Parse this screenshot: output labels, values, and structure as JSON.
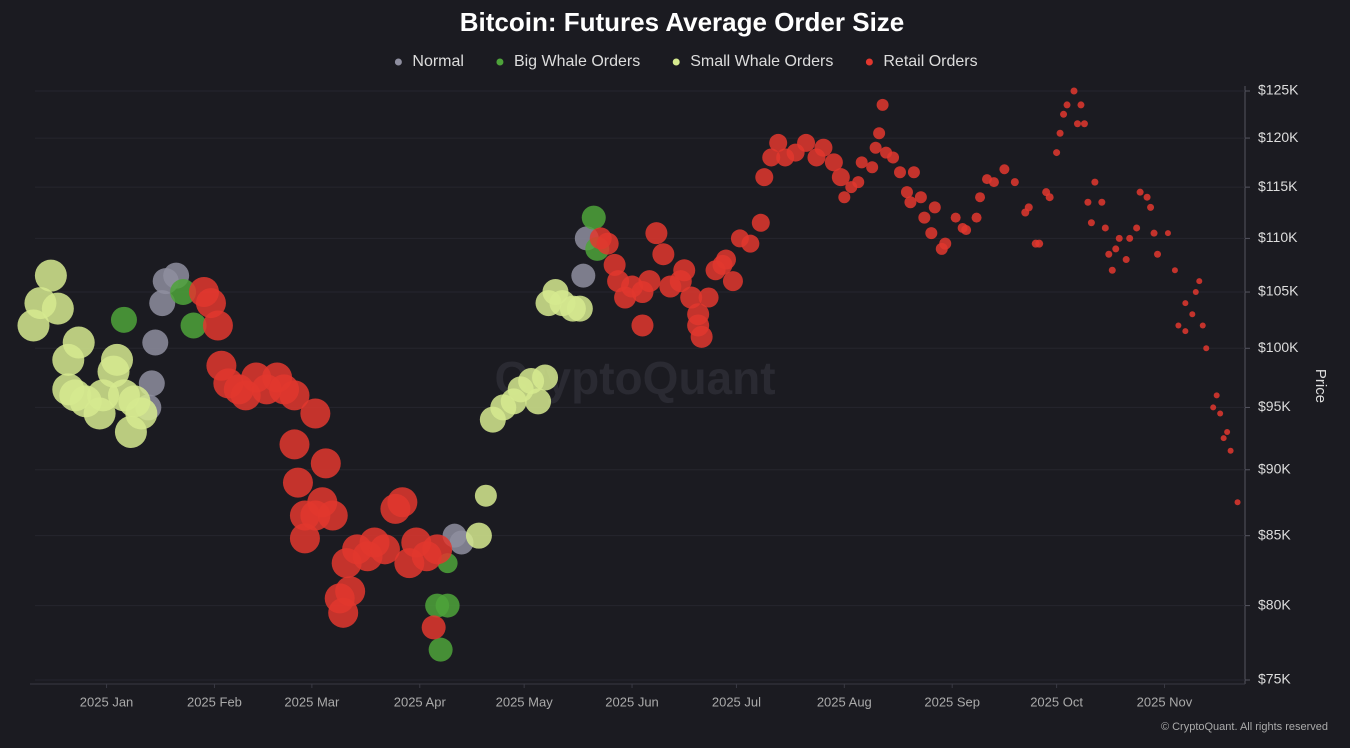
{
  "chart_data": {
    "type": "scatter",
    "title": "Bitcoin: Futures Average Order Size",
    "y_label": "Price",
    "watermark": "CryptoQuant",
    "footer": "© CryptoQuant. All rights reserved",
    "y_scale": "log",
    "grid": true,
    "legend": "top",
    "xlim": [
      "2024-12-10",
      "2025-11-25"
    ],
    "xticks": [
      {
        "value": "2025-01-01",
        "label": "2025 Jan"
      },
      {
        "value": "2025-02-01",
        "label": "2025 Feb"
      },
      {
        "value": "2025-03-01",
        "label": "2025 Mar"
      },
      {
        "value": "2025-04-01",
        "label": "2025 Apr"
      },
      {
        "value": "2025-05-01",
        "label": "2025 May"
      },
      {
        "value": "2025-06-01",
        "label": "2025 Jun"
      },
      {
        "value": "2025-07-01",
        "label": "2025 Jul"
      },
      {
        "value": "2025-08-01",
        "label": "2025 Aug"
      },
      {
        "value": "2025-09-01",
        "label": "2025 Sep"
      },
      {
        "value": "2025-10-01",
        "label": "2025 Oct"
      },
      {
        "value": "2025-11-01",
        "label": "2025 Nov"
      }
    ],
    "ylim": [
      75000,
      125000
    ],
    "yticks": [
      {
        "value": 75000,
        "label": "$75K"
      },
      {
        "value": 80000,
        "label": "$80K"
      },
      {
        "value": 85000,
        "label": "$85K"
      },
      {
        "value": 90000,
        "label": "$90K"
      },
      {
        "value": 95000,
        "label": "$95K"
      },
      {
        "value": 100000,
        "label": "$100K"
      },
      {
        "value": 105000,
        "label": "$105K"
      },
      {
        "value": 110000,
        "label": "$110K"
      },
      {
        "value": 115000,
        "label": "$115K"
      },
      {
        "value": 120000,
        "label": "$120K"
      },
      {
        "value": 125000,
        "label": "$125K"
      }
    ],
    "series": [
      {
        "name": "Normal",
        "color": "#8e8e9f",
        "x": [
          "2025-01-13",
          "2025-01-14",
          "2025-01-15",
          "2025-01-17",
          "2025-01-18",
          "2025-01-21",
          "2025-04-11",
          "2025-04-13",
          "2025-05-18",
          "2025-05-19"
        ],
        "values": [
          95000,
          97000,
          100500,
          104000,
          106000,
          106500,
          85000,
          84500,
          106500,
          110000
        ],
        "sizes": [
          13,
          13,
          13,
          13,
          13,
          13,
          12,
          12,
          12,
          12
        ]
      },
      {
        "name": "Big Whale Orders",
        "color": "#4ea33a",
        "x": [
          "2025-01-06",
          "2025-01-23",
          "2025-01-26",
          "2025-04-06",
          "2025-04-09",
          "2025-04-07",
          "2025-04-09",
          "2025-05-21",
          "2025-05-22"
        ],
        "values": [
          102500,
          105000,
          102000,
          80000,
          80000,
          77000,
          83000,
          112000,
          109000
        ],
        "sizes": [
          13,
          13,
          13,
          12,
          12,
          12,
          10,
          12,
          12
        ]
      },
      {
        "name": "Small Whale Orders",
        "color": "#d6ea8f",
        "x": [
          "2024-12-11",
          "2024-12-13",
          "2024-12-16",
          "2024-12-18",
          "2024-12-21",
          "2024-12-24",
          "2024-12-21",
          "2024-12-23",
          "2024-12-26",
          "2024-12-30",
          "2024-12-31",
          "2025-01-03",
          "2025-01-04",
          "2025-01-06",
          "2025-01-08",
          "2025-01-09",
          "2025-01-11",
          "2025-04-18",
          "2025-04-20",
          "2025-04-22",
          "2025-04-25",
          "2025-04-28",
          "2025-04-30",
          "2025-05-03",
          "2025-05-05",
          "2025-05-07",
          "2025-05-08",
          "2025-05-10",
          "2025-05-12",
          "2025-05-15",
          "2025-05-17"
        ],
        "values": [
          102000,
          104000,
          106500,
          103500,
          99000,
          100500,
          96500,
          96000,
          95500,
          94500,
          96000,
          98000,
          99000,
          96000,
          93000,
          95500,
          94500,
          85000,
          88000,
          94000,
          95000,
          95500,
          96500,
          97200,
          95500,
          97500,
          104000,
          105000,
          104000,
          103500,
          103500
        ],
        "sizes": [
          16,
          16,
          16,
          16,
          16,
          16,
          16,
          16,
          16,
          16,
          16,
          16,
          16,
          16,
          16,
          16,
          16,
          13,
          11,
          13,
          13,
          13,
          13,
          13,
          13,
          13,
          13,
          13,
          13,
          13,
          13
        ]
      },
      {
        "name": "Retail Orders",
        "color": "#e2372e",
        "x": [
          "2025-01-29",
          "2025-01-31",
          "2025-02-02",
          "2025-02-03",
          "2025-02-05",
          "2025-02-08",
          "2025-02-10",
          "2025-02-13",
          "2025-02-16",
          "2025-02-19",
          "2025-02-21",
          "2025-02-24",
          "2025-02-24",
          "2025-03-02",
          "2025-03-05",
          "2025-02-25",
          "2025-02-27",
          "2025-02-27",
          "2025-03-02",
          "2025-03-04",
          "2025-03-07",
          "2025-03-09",
          "2025-03-10",
          "2025-03-12",
          "2025-03-11",
          "2025-03-14",
          "2025-03-17",
          "2025-03-19",
          "2025-03-22",
          "2025-03-25",
          "2025-03-27",
          "2025-03-29",
          "2025-03-31",
          "2025-04-03",
          "2025-04-05",
          "2025-04-06",
          "2025-05-23",
          "2025-05-25",
          "2025-05-27",
          "2025-05-28",
          "2025-05-30",
          "2025-06-01",
          "2025-06-04",
          "2025-06-04",
          "2025-06-06",
          "2025-06-08",
          "2025-06-10",
          "2025-06-12",
          "2025-06-15",
          "2025-06-16",
          "2025-06-18",
          "2025-06-20",
          "2025-06-20",
          "2025-06-21",
          "2025-06-23",
          "2025-06-25",
          "2025-06-27",
          "2025-06-28",
          "2025-06-30",
          "2025-07-02",
          "2025-07-05",
          "2025-07-08",
          "2025-07-09",
          "2025-07-11",
          "2025-07-13",
          "2025-07-15",
          "2025-07-18",
          "2025-07-21",
          "2025-07-24",
          "2025-07-26",
          "2025-07-29",
          "2025-07-31",
          "2025-08-01",
          "2025-08-03",
          "2025-08-05",
          "2025-08-06",
          "2025-08-09",
          "2025-08-10",
          "2025-08-11",
          "2025-08-12",
          "2025-08-13",
          "2025-08-15",
          "2025-08-17",
          "2025-08-19",
          "2025-08-20",
          "2025-08-21",
          "2025-08-23",
          "2025-08-24",
          "2025-08-26",
          "2025-08-27",
          "2025-08-29",
          "2025-08-30",
          "2025-09-02",
          "2025-09-04",
          "2025-09-05",
          "2025-09-08",
          "2025-09-09",
          "2025-09-11",
          "2025-09-13",
          "2025-09-16",
          "2025-09-19",
          "2025-09-22",
          "2025-09-23",
          "2025-09-25",
          "2025-09-26",
          "2025-09-28",
          "2025-09-29",
          "2025-10-01",
          "2025-10-02",
          "2025-10-03",
          "2025-10-04",
          "2025-10-06",
          "2025-10-07",
          "2025-10-08",
          "2025-10-09",
          "2025-10-10",
          "2025-10-11",
          "2025-10-12",
          "2025-10-14",
          "2025-10-15",
          "2025-10-16",
          "2025-10-17",
          "2025-10-18",
          "2025-10-19",
          "2025-10-21",
          "2025-10-22",
          "2025-10-24",
          "2025-10-25",
          "2025-10-27",
          "2025-10-28",
          "2025-10-29",
          "2025-10-30",
          "2025-11-02",
          "2025-11-04",
          "2025-11-05",
          "2025-11-07",
          "2025-11-07",
          "2025-11-09",
          "2025-11-10",
          "2025-11-11",
          "2025-11-12",
          "2025-11-13",
          "2025-11-15",
          "2025-11-16",
          "2025-11-17",
          "2025-11-18",
          "2025-11-19",
          "2025-11-20",
          "2025-11-22"
        ],
        "values": [
          105000,
          104000,
          102000,
          98500,
          97000,
          96500,
          96000,
          97500,
          96500,
          97500,
          96500,
          96000,
          92000,
          94500,
          90500,
          89000,
          86500,
          84800,
          86500,
          87500,
          86500,
          80500,
          79500,
          81000,
          83000,
          84000,
          83500,
          84500,
          84000,
          87000,
          87500,
          83000,
          84500,
          83500,
          78500,
          84000,
          110000,
          109500,
          107500,
          106000,
          104500,
          105500,
          105000,
          102000,
          106000,
          110500,
          108500,
          105500,
          106000,
          107000,
          104500,
          103000,
          102000,
          101000,
          104500,
          107000,
          107500,
          108000,
          106000,
          110000,
          109500,
          111500,
          116000,
          118000,
          119500,
          118000,
          118500,
          119500,
          118000,
          119000,
          117500,
          116000,
          114000,
          115000,
          115500,
          117500,
          117000,
          119000,
          120500,
          123500,
          118500,
          118000,
          116500,
          114500,
          113500,
          116500,
          114000,
          112000,
          110500,
          113000,
          109000,
          109500,
          112000,
          111000,
          110800,
          112000,
          114000,
          115800,
          115500,
          116800,
          115500,
          112500,
          113000,
          109500,
          109500,
          114500,
          114000,
          118500,
          120500,
          122500,
          123500,
          125000,
          121500,
          123500,
          121500,
          113500,
          111500,
          115500,
          113500,
          111000,
          108500,
          107000,
          109000,
          110000,
          108000,
          110000,
          111000,
          114500,
          114000,
          113000,
          110500,
          108500,
          110500,
          107000,
          102000,
          104000,
          101500,
          103000,
          105000,
          106000,
          102000,
          100000,
          95000,
          96000,
          94500,
          92500,
          93000,
          91500,
          87500
        ],
        "sizes": [
          15,
          15,
          15,
          15,
          15,
          15,
          15,
          15,
          15,
          15,
          15,
          15,
          15,
          15,
          15,
          15,
          15,
          15,
          15,
          15,
          15,
          15,
          15,
          15,
          15,
          15,
          15,
          15,
          15,
          15,
          15,
          15,
          15,
          15,
          12,
          15,
          11,
          11,
          11,
          11,
          11,
          11,
          11,
          11,
          11,
          11,
          11,
          11,
          11,
          11,
          11,
          11,
          11,
          11,
          10,
          10,
          10,
          10,
          10,
          9,
          9,
          9,
          9,
          9,
          9,
          9,
          9,
          9,
          9,
          9,
          9,
          9,
          6,
          6,
          6,
          6,
          6,
          6,
          6,
          6,
          6,
          6,
          6,
          6,
          6,
          6,
          6,
          6,
          6,
          6,
          6,
          6,
          5,
          5,
          5,
          5,
          5,
          5,
          5,
          5,
          4,
          4,
          4,
          4,
          4,
          4,
          4,
          3.5,
          3.5,
          3.5,
          3.5,
          3.5,
          3.5,
          3.5,
          3.5,
          3.5,
          3.5,
          3.5,
          3.5,
          3.5,
          3.5,
          3.5,
          3.5,
          3.5,
          3.5,
          3.5,
          3.5,
          3.5,
          3.5,
          3.5,
          3.5,
          3.5,
          3,
          3,
          3,
          3,
          3,
          3,
          3,
          3,
          3,
          3,
          3,
          3,
          3,
          3,
          3,
          3,
          3
        ]
      }
    ]
  }
}
